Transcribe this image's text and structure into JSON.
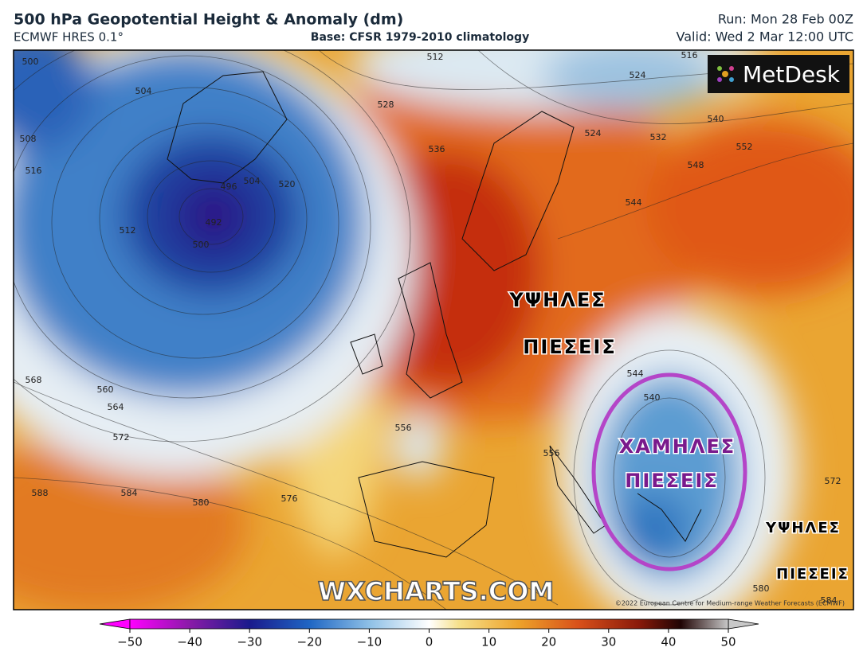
{
  "header": {
    "title": "500 hPa Geopotential Height & Anomaly (dm)",
    "model": "ECMWF HRES 0.1°",
    "base": "Base: CFSR 1979-2010 climatology",
    "run": "Run: Mon 28 Feb 00Z",
    "valid": "Valid: Wed 2 Mar 12:00 UTC"
  },
  "map": {
    "logo": "MetDesk",
    "watermark": "WXCHARTS.COM",
    "copyright": "©2022 European Centre for Medium-range Weather Forecasts (ECMWF)",
    "annotations": [
      {
        "text": "ΥΨΗΛΕΣ",
        "color": "#000000"
      },
      {
        "text": "ΠΙΕΣΕΙΣ",
        "color": "#000000"
      },
      {
        "text": "ΧΑΜΗΛΕΣ",
        "color": "#7a1a8c"
      },
      {
        "text": "ΠΙΕΣΕΙΣ",
        "color": "#7a1a8c"
      },
      {
        "text": "ΥΨΗΛΕΣ",
        "color": "#000000"
      },
      {
        "text": "ΠΙΕΣΕΙΣ",
        "color": "#000000"
      }
    ],
    "contour_labels": [
      500,
      504,
      508,
      516,
      512,
      496,
      492,
      500,
      504,
      520,
      528,
      536,
      512,
      524,
      532,
      540,
      548,
      552,
      544,
      568,
      560,
      564,
      572,
      556,
      556,
      544,
      540,
      588,
      584,
      580,
      576,
      572,
      580,
      584,
      516,
      524
    ]
  },
  "colorbar": {
    "range": [
      -50,
      50
    ],
    "ticks": [
      {
        "value": -50,
        "label": "−50"
      },
      {
        "value": -40,
        "label": "−40"
      },
      {
        "value": -30,
        "label": "−30"
      },
      {
        "value": -20,
        "label": "−20"
      },
      {
        "value": -10,
        "label": "−10"
      },
      0,
      10,
      20,
      30,
      40,
      50
    ]
  }
}
